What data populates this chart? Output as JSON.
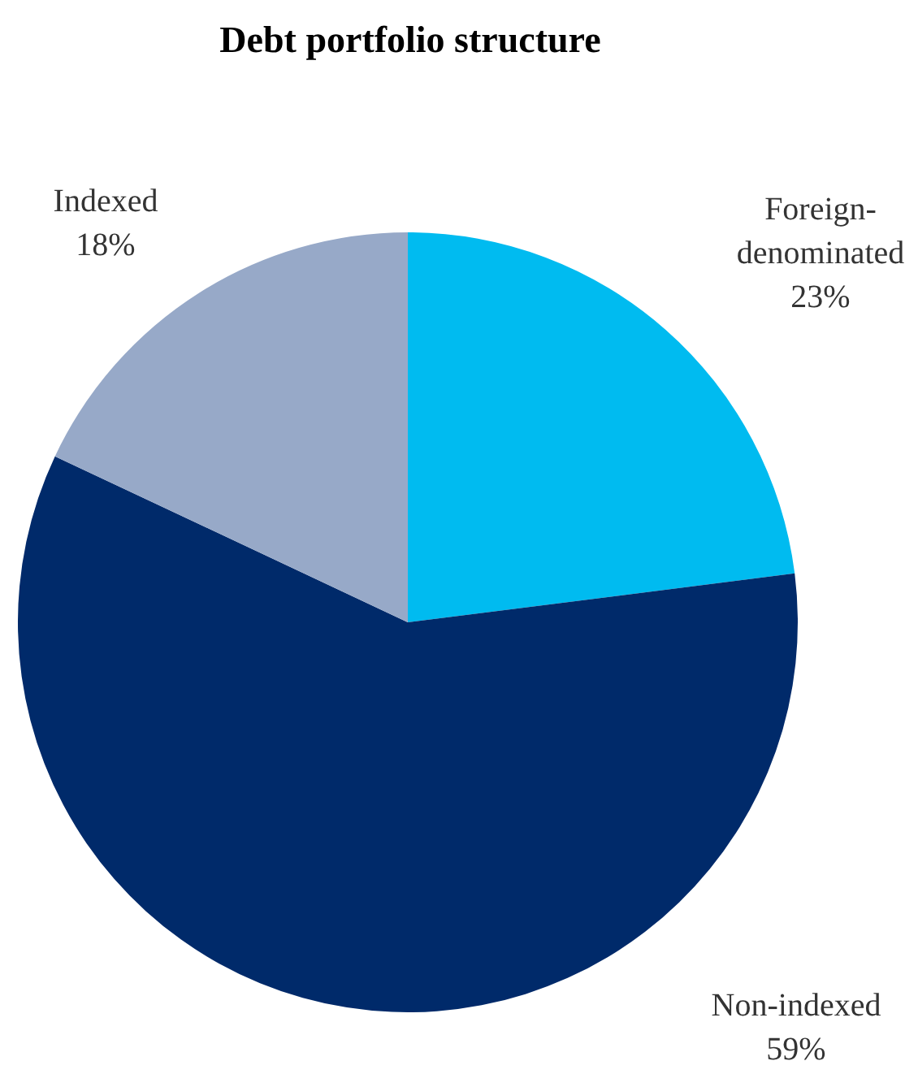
{
  "chart_data": {
    "type": "pie",
    "title": "Debt portfolio structure",
    "categories": [
      "Foreign-denominated",
      "Non-indexed",
      "Indexed"
    ],
    "values": [
      23,
      59,
      18
    ],
    "colors": [
      "#00bbf0",
      "#002a6a",
      "#97a9c8"
    ],
    "value_labels": [
      "23%",
      "59%",
      "18%"
    ],
    "legend": false
  }
}
